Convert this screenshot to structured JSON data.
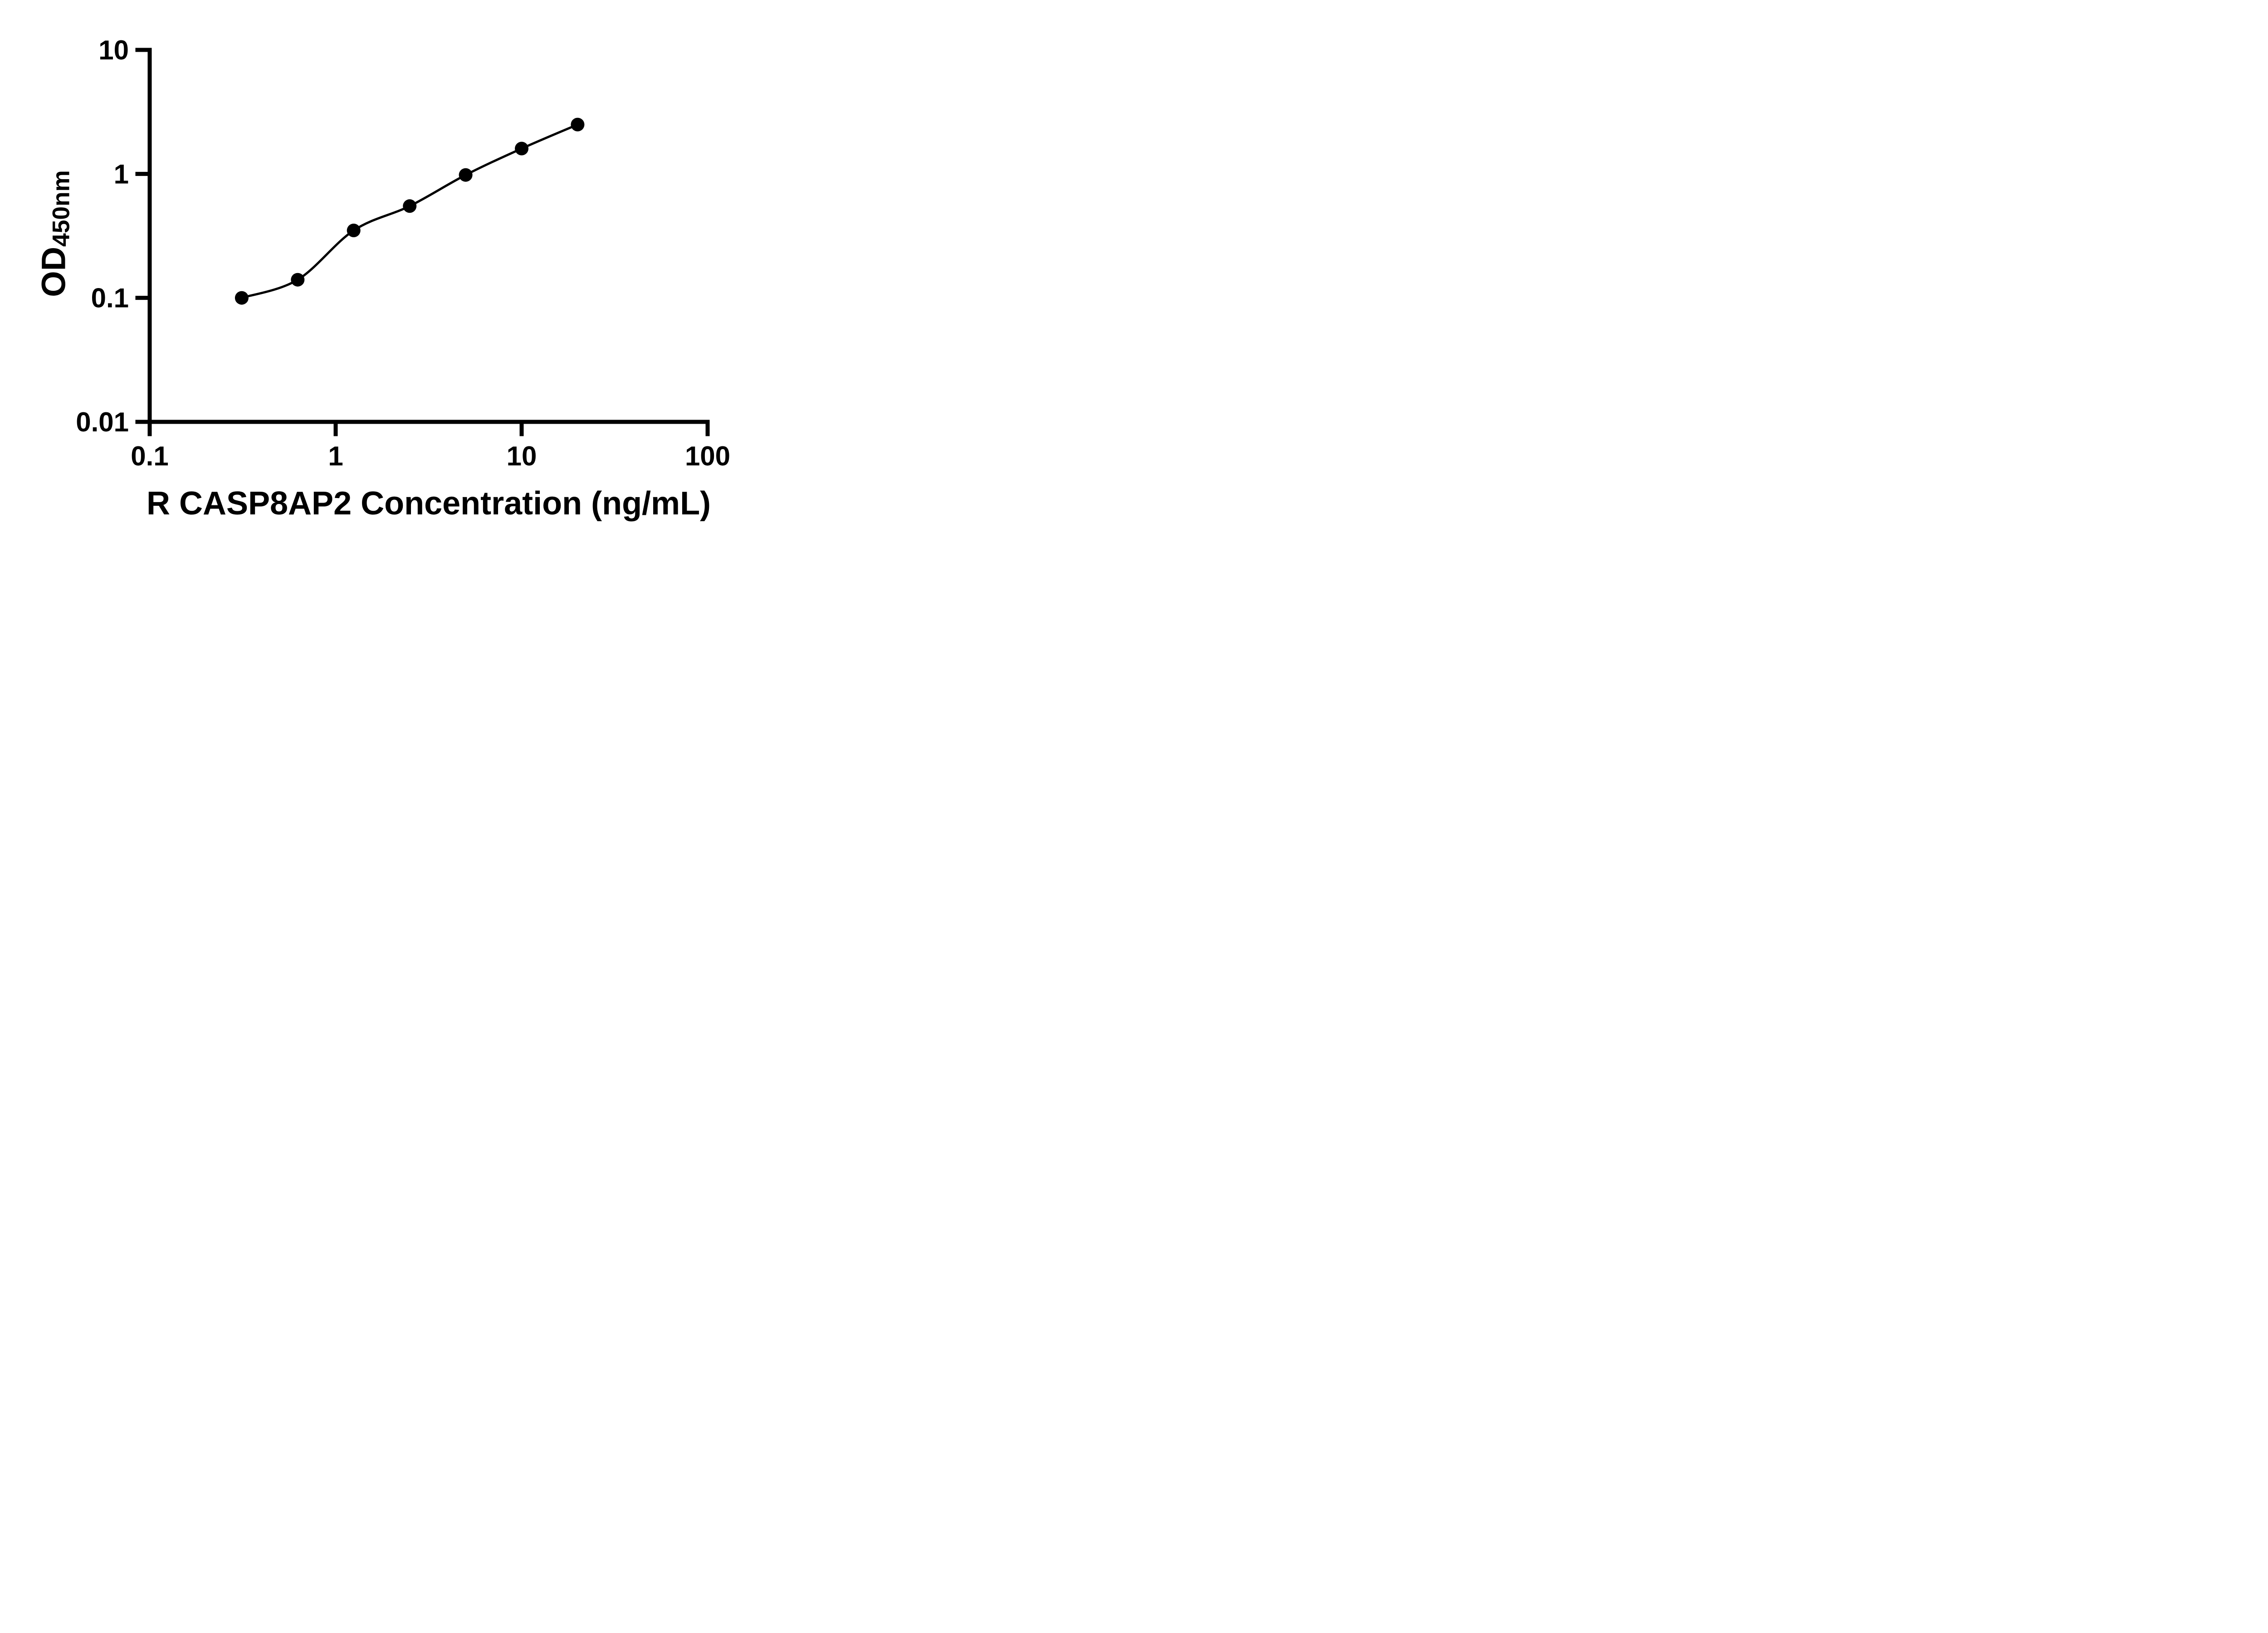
{
  "chart": {
    "xlabel": "R CASP8AP2 Concentration (ng/mL)",
    "ylabel_main": "OD",
    "ylabel_sub": "450nm"
  },
  "chart_data": {
    "type": "scatter",
    "subtype": "log-log standard curve with smooth fit line",
    "x": [
      0.3125,
      0.625,
      1.25,
      2.5,
      5,
      10,
      20
    ],
    "y": [
      0.1,
      0.14,
      0.35,
      0.55,
      0.98,
      1.6,
      2.5
    ],
    "title": "",
    "xlabel": "R CASP8AP2 Concentration (ng/mL)",
    "ylabel": "OD450nm",
    "xscale": "log",
    "yscale": "log",
    "xlim": [
      0.1,
      100
    ],
    "ylim": [
      0.01,
      10
    ],
    "x_ticks": [
      0.1,
      1,
      10,
      100
    ],
    "x_tick_labels": [
      "0.1",
      "1",
      "10",
      "100"
    ],
    "y_ticks": [
      0.01,
      0.1,
      1,
      10
    ],
    "y_tick_labels": [
      "0.01",
      "0.1",
      "1",
      "10"
    ],
    "grid": false,
    "legend": false,
    "marker_color": "#000000",
    "line_color": "#000000",
    "axis_color": "#000000",
    "background": "#ffffff"
  }
}
